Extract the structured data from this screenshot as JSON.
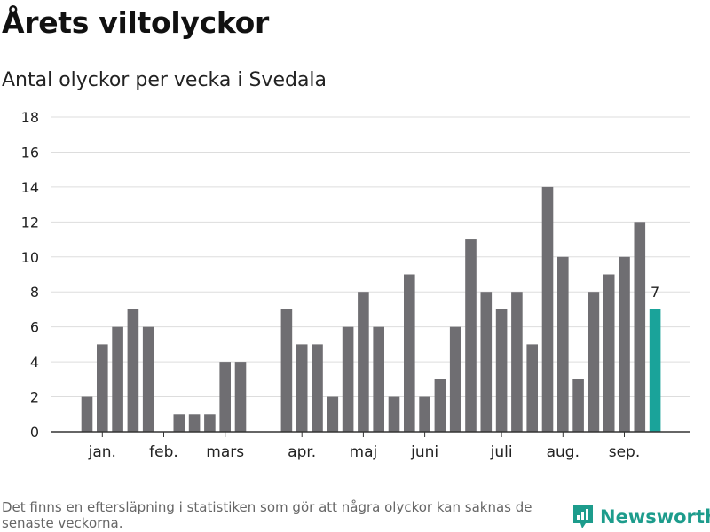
{
  "header": {
    "title": "Årets viltolyckor",
    "subtitle": "Antal olyckor per vecka i Svedala"
  },
  "footer": {
    "note": "Det finns en eftersläpning i statistiken som gör att några olyckor kan saknas de senaste veckorna.",
    "brand": "Newsworthy"
  },
  "colors": {
    "bar": "#6f6e72",
    "highlight": "#1aa39a",
    "grid": "#dddddd",
    "axis": "#333333",
    "brand": "#1d9c8c"
  },
  "chart_data": {
    "type": "bar",
    "title": "Antal olyckor per vecka i Svedala",
    "xlabel": "",
    "ylabel": "",
    "ylim": [
      0,
      18
    ],
    "yticks": [
      0,
      2,
      4,
      6,
      8,
      10,
      12,
      14,
      16,
      18
    ],
    "grid": true,
    "weeks": [
      1,
      2,
      3,
      4,
      5,
      6,
      7,
      8,
      9,
      10,
      11,
      12,
      13,
      14,
      15,
      16,
      17,
      18,
      19,
      20,
      21,
      22,
      23,
      24,
      25,
      26,
      27,
      28,
      29,
      30,
      31,
      32,
      33,
      34,
      35,
      36,
      37,
      38,
      39,
      40,
      41
    ],
    "values": [
      0,
      2,
      5,
      6,
      7,
      6,
      0,
      1,
      1,
      1,
      4,
      4,
      0,
      0,
      7,
      5,
      5,
      2,
      6,
      8,
      6,
      2,
      9,
      2,
      3,
      6,
      11,
      8,
      7,
      8,
      5,
      14,
      10,
      3,
      8,
      9,
      10,
      12,
      7,
      0,
      0
    ],
    "highlight_index": 38,
    "highlight_label": "7",
    "month_labels": [
      {
        "label": "jan.",
        "week": 3
      },
      {
        "label": "feb.",
        "week": 7
      },
      {
        "label": "mars",
        "week": 11
      },
      {
        "label": "apr.",
        "week": 16
      },
      {
        "label": "maj",
        "week": 20
      },
      {
        "label": "juni",
        "week": 24
      },
      {
        "label": "juli",
        "week": 29
      },
      {
        "label": "aug.",
        "week": 33
      },
      {
        "label": "sep.",
        "week": 37
      }
    ]
  }
}
